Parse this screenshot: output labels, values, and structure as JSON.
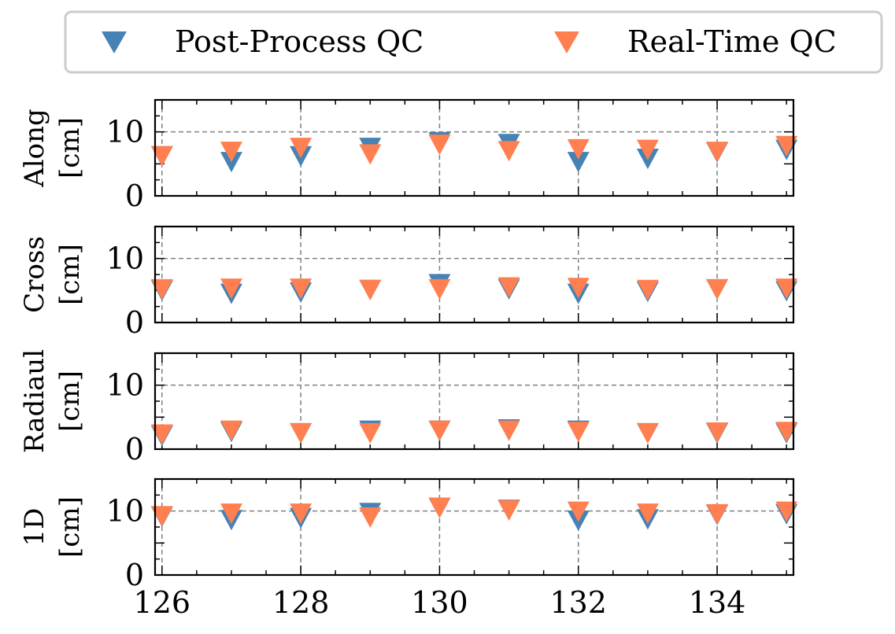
{
  "chart_data": {
    "type": "scatter",
    "x": [
      126,
      127,
      128,
      129,
      130,
      131,
      132,
      133,
      134,
      135
    ],
    "xlim": [
      125.9,
      135.1
    ],
    "xticks": [
      126,
      128,
      130,
      132,
      134
    ],
    "xtick_labels": [
      "126",
      "128",
      "130",
      "132",
      "134"
    ],
    "legend": {
      "placement": "top",
      "entries": [
        {
          "label": "Post-Process QC",
          "color": "#4682B4"
        },
        {
          "label": "Real-Time QC",
          "color": "#FF7F50"
        }
      ]
    },
    "reference_line": 10,
    "panels": [
      {
        "ylabel_line1": "Along",
        "ylabel_line2": "[cm]",
        "ylim": [
          0,
          15
        ],
        "yticks": [
          0,
          10
        ],
        "ytick_labels": [
          "0",
          "10"
        ],
        "series": [
          {
            "name": "Post-Process QC",
            "values": [
              6.3,
              5.4,
              6.3,
              7.6,
              8.5,
              8.2,
              5.4,
              5.9,
              6.9,
              7.3
            ]
          },
          {
            "name": "Real-Time QC",
            "values": [
              6.3,
              7.0,
              7.6,
              6.6,
              8.1,
              7.1,
              7.4,
              7.3,
              7.0,
              7.9
            ]
          }
        ]
      },
      {
        "ylabel_line1": "Cross",
        "ylabel_line2": "[cm]",
        "ylim": [
          0,
          15
        ],
        "yticks": [
          0,
          10
        ],
        "ytick_labels": [
          "0",
          "10"
        ],
        "series": [
          {
            "name": "Post-Process QC",
            "values": [
              5.1,
              4.6,
              4.8,
              5.2,
              6.1,
              5.3,
              4.6,
              4.9,
              5.3,
              5.0
            ]
          },
          {
            "name": "Real-Time QC",
            "values": [
              5.3,
              5.4,
              5.4,
              5.2,
              5.3,
              5.6,
              5.5,
              5.2,
              5.3,
              5.4
            ]
          }
        ]
      },
      {
        "ylabel_line1": "Radiaul",
        "ylabel_line2": "[cm]",
        "ylim": [
          0,
          15
        ],
        "yticks": [
          0,
          10
        ],
        "ytick_labels": [
          "0",
          "10"
        ],
        "series": [
          {
            "name": "Post-Process QC",
            "values": [
              2.2,
              2.8,
              2.6,
              3.0,
              3.0,
              3.2,
              3.0,
              2.6,
              2.6,
              2.6
            ]
          },
          {
            "name": "Real-Time QC",
            "values": [
              2.4,
              3.0,
              2.6,
              2.6,
              3.0,
              3.0,
              2.8,
              2.6,
              2.7,
              2.8
            ]
          }
        ]
      },
      {
        "ylabel_line1": "1D",
        "ylabel_line2": "[cm]",
        "ylim": [
          0,
          15
        ],
        "yticks": [
          0,
          10
        ],
        "ytick_labels": [
          "0",
          "10"
        ],
        "series": [
          {
            "name": "Post-Process QC",
            "values": [
              9.2,
              8.7,
              9.0,
              9.8,
              10.6,
              10.3,
              8.6,
              8.8,
              9.5,
              9.6
            ]
          },
          {
            "name": "Real-Time QC",
            "values": [
              9.3,
              9.7,
              9.7,
              9.1,
              10.6,
              10.2,
              10.0,
              9.7,
              9.6,
              10.0
            ]
          }
        ]
      }
    ]
  }
}
